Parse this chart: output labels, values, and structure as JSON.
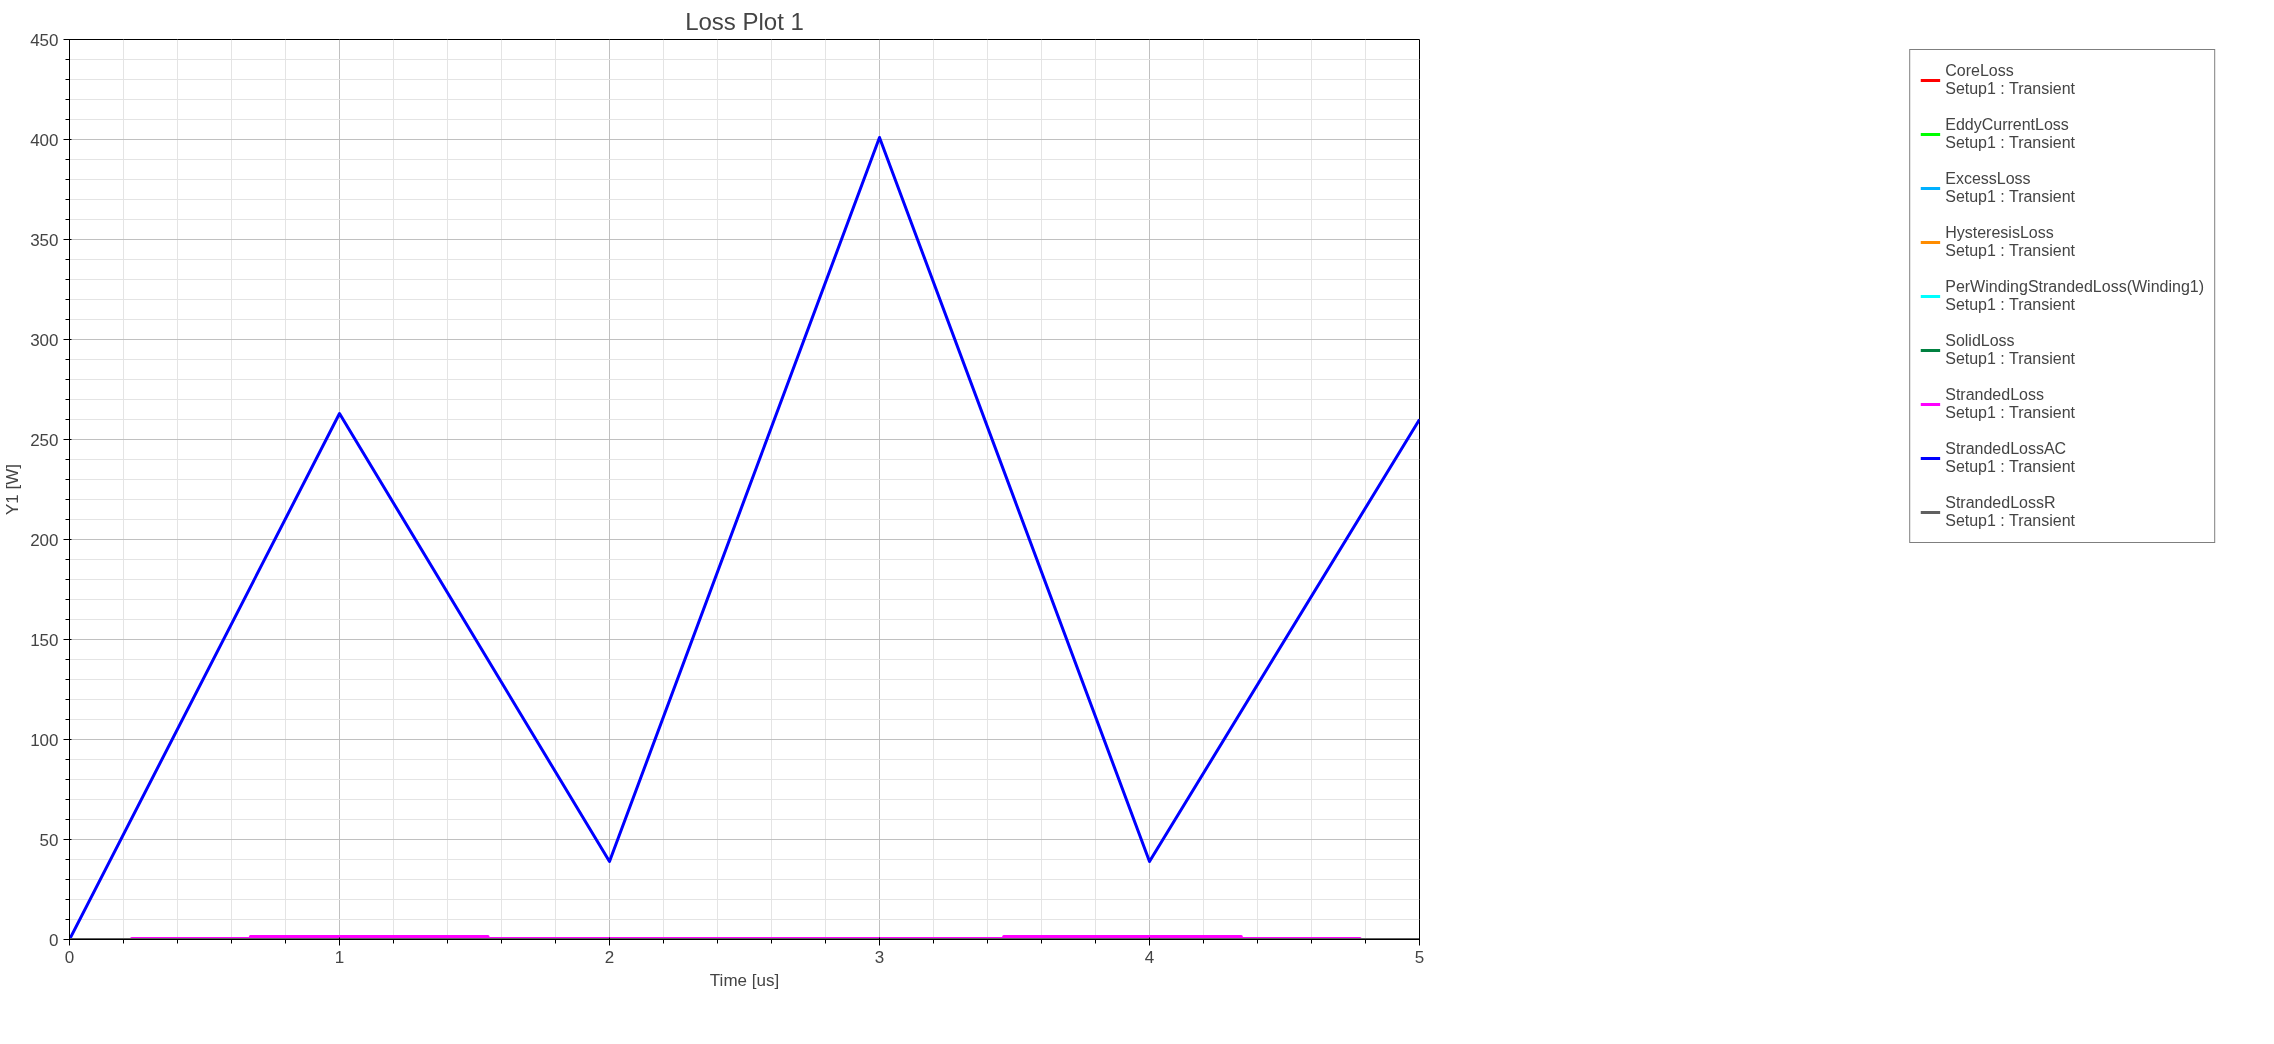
{
  "chart_data": {
    "type": "line",
    "title": "Loss Plot 1",
    "xlabel": "Time [us]",
    "ylabel": "Y1 [W]",
    "xlim": [
      0,
      5
    ],
    "xticks": [
      0,
      1,
      2,
      3,
      4,
      5
    ],
    "ylim": [
      0,
      450
    ],
    "yticks": [
      0,
      50,
      100,
      150,
      200,
      250,
      300,
      350,
      400,
      450
    ],
    "grid": true,
    "legend": "right",
    "marker": "none",
    "line_style": "solid",
    "series": [
      {
        "name": "CoreLoss\nSetup1 : Transient",
        "color": "#ff0000",
        "values": [
          null,
          null
        ]
      },
      {
        "name": "EddyCurrentLoss\nSetup1 : Transient",
        "color": "#00ff00",
        "values": [
          null,
          null
        ]
      },
      {
        "name": "ExcessLoss\nSetup1 : Transient",
        "color": "#00b0ff",
        "values": [
          null,
          null
        ]
      },
      {
        "name": "HysteresisLoss\nSetup1 : Transient",
        "color": "#ff8c00",
        "values": [
          null,
          null
        ]
      },
      {
        "name": "PerWindingStrandedLoss(Winding1)\nSetup1 : Transient",
        "color": "#00ffff",
        "values": [
          null,
          null
        ]
      },
      {
        "name": "SolidLoss\nSetup1 : Transient",
        "color": "#008040",
        "values": [
          null,
          null
        ]
      },
      {
        "name": "StrandedLoss\nSetup1 : Transient",
        "color": "#ff00ff",
        "type": "step",
        "x": [
          0,
          0.23,
          0.67,
          1.55,
          3.46,
          4.34,
          4.78,
          5
        ],
        "values": [
          0,
          0.5,
          1.5,
          0.5,
          1.5,
          0.5,
          0,
          0
        ]
      },
      {
        "name": "StrandedLossAC\nSetup1 : Transient",
        "color": "#0000ff",
        "x": [
          0,
          1,
          2,
          3,
          4,
          5
        ],
        "values": [
          0,
          263,
          39,
          401,
          39,
          260
        ]
      },
      {
        "name": "StrandedLossR\nSetup1 : Transient",
        "color": "#606060",
        "x": [
          0,
          5
        ],
        "values": [
          0,
          0
        ]
      }
    ]
  }
}
